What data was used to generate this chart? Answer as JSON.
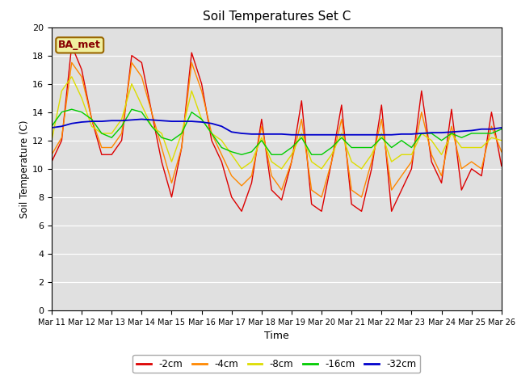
{
  "title": "Soil Temperatures Set C",
  "xlabel": "Time",
  "ylabel": "Soil Temperature (C)",
  "ylim": [
    0,
    20
  ],
  "yticks": [
    0,
    2,
    4,
    6,
    8,
    10,
    12,
    14,
    16,
    18,
    20
  ],
  "annotation": "BA_met",
  "plot_bg_color": "#e0e0e0",
  "fig_bg_color": "#ffffff",
  "legend": [
    "-2cm",
    "-4cm",
    "-8cm",
    "-16cm",
    "-32cm"
  ],
  "colors": [
    "#dd0000",
    "#ff8800",
    "#dddd00",
    "#00cc00",
    "#0000cc"
  ],
  "x_labels": [
    "Mar 11",
    "Mar 12",
    "Mar 13",
    "Mar 14",
    "Mar 15",
    "Mar 16",
    "Mar 17",
    "Mar 18",
    "Mar 19",
    "Mar 20",
    "Mar 21",
    "Mar 22",
    "Mar 23",
    "Mar 24",
    "Mar 25",
    "Mar 26"
  ],
  "data_2cm": [
    10.5,
    12.0,
    18.7,
    17.0,
    13.5,
    11.0,
    11.0,
    12.0,
    18.0,
    17.5,
    14.0,
    10.5,
    8.0,
    11.5,
    18.2,
    16.0,
    12.0,
    10.5,
    8.0,
    7.0,
    9.0,
    13.5,
    8.5,
    7.8,
    10.5,
    14.8,
    7.5,
    7.0,
    10.5,
    14.5,
    7.5,
    7.0,
    10.0,
    14.5,
    7.0,
    8.5,
    10.0,
    15.5,
    10.5,
    9.0,
    14.2,
    8.5,
    10.0,
    9.5,
    14.0,
    10.2
  ],
  "data_4cm": [
    11.0,
    12.2,
    17.5,
    16.5,
    13.5,
    11.5,
    11.5,
    12.5,
    17.5,
    16.5,
    14.0,
    11.5,
    9.0,
    11.5,
    17.5,
    15.5,
    12.5,
    11.0,
    9.5,
    8.8,
    9.5,
    13.0,
    9.5,
    8.5,
    10.5,
    13.5,
    8.5,
    8.0,
    10.5,
    13.5,
    8.5,
    8.0,
    10.5,
    13.5,
    8.5,
    9.5,
    10.5,
    14.0,
    11.0,
    9.5,
    13.0,
    10.0,
    10.5,
    10.0,
    13.0,
    11.2
  ],
  "data_8cm": [
    12.0,
    15.5,
    16.5,
    15.0,
    13.0,
    12.5,
    12.5,
    13.5,
    16.0,
    14.5,
    13.0,
    12.5,
    10.5,
    12.5,
    15.5,
    13.5,
    12.5,
    12.0,
    11.0,
    10.0,
    10.5,
    12.2,
    10.5,
    10.0,
    11.0,
    12.5,
    10.5,
    10.0,
    11.0,
    12.5,
    10.5,
    10.0,
    11.0,
    12.5,
    10.5,
    11.0,
    11.0,
    12.5,
    12.0,
    11.0,
    12.5,
    11.5,
    11.5,
    11.5,
    12.2,
    12.0
  ],
  "data_16cm": [
    13.0,
    14.0,
    14.2,
    14.0,
    13.5,
    12.5,
    12.2,
    13.0,
    14.2,
    14.0,
    13.0,
    12.2,
    12.0,
    12.5,
    14.0,
    13.5,
    12.5,
    11.5,
    11.2,
    11.0,
    11.2,
    12.0,
    11.0,
    11.0,
    11.5,
    12.2,
    11.0,
    11.0,
    11.5,
    12.2,
    11.5,
    11.5,
    11.5,
    12.2,
    11.5,
    12.0,
    11.5,
    12.5,
    12.5,
    12.0,
    12.5,
    12.2,
    12.5,
    12.5,
    12.5,
    12.8
  ],
  "data_32cm": [
    12.9,
    13.0,
    13.2,
    13.3,
    13.35,
    13.35,
    13.4,
    13.4,
    13.45,
    13.5,
    13.45,
    13.4,
    13.35,
    13.35,
    13.35,
    13.3,
    13.2,
    13.0,
    12.6,
    12.5,
    12.45,
    12.45,
    12.45,
    12.45,
    12.4,
    12.4,
    12.4,
    12.4,
    12.4,
    12.4,
    12.4,
    12.4,
    12.4,
    12.4,
    12.4,
    12.45,
    12.45,
    12.5,
    12.55,
    12.55,
    12.6,
    12.65,
    12.7,
    12.8,
    12.8,
    12.9
  ]
}
